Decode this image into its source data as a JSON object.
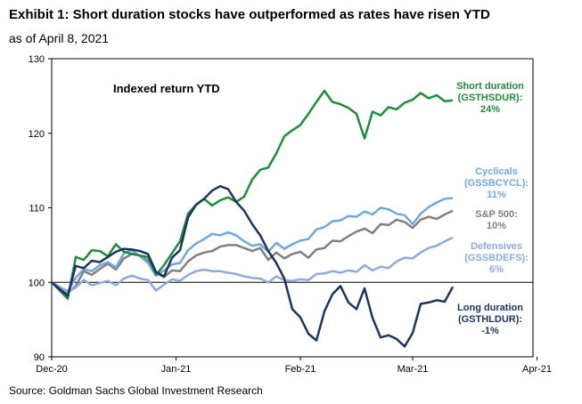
{
  "title": "Exhibit 1: Short duration stocks have outperformed as rates have risen YTD",
  "subtitle": "as of April 8, 2021",
  "source": "Source: Goldman Sachs Global Investment Research",
  "chart_data": {
    "type": "line",
    "annotation": "Indexed return YTD",
    "xlabel": "",
    "ylabel": "",
    "ylim": [
      90,
      130
    ],
    "yticks": [
      90,
      100,
      110,
      120,
      130
    ],
    "xlim": [
      0,
      120
    ],
    "xticks": [
      {
        "label": "Dec-20",
        "x": 0
      },
      {
        "label": "Jan-21",
        "x": 31
      },
      {
        "label": "Feb-21",
        "x": 62
      },
      {
        "label": "Mar-21",
        "x": 90
      },
      {
        "label": "Apr-21",
        "x": 121
      }
    ],
    "baseline": 100,
    "series": [
      {
        "name": "S&P 500",
        "legend_lines": [
          "S&P 500:",
          "10%"
        ],
        "color": "#808080",
        "x": [
          0,
          4,
          6,
          8,
          10,
          12,
          14,
          16,
          18,
          20,
          22,
          24,
          26,
          28,
          30,
          32,
          34,
          36,
          38,
          40,
          42,
          44,
          46,
          48,
          50,
          52,
          54,
          56,
          58,
          60,
          62,
          64,
          66,
          68,
          70,
          72,
          74,
          76,
          78,
          80,
          82,
          84,
          86,
          88,
          90,
          92,
          94,
          96,
          98,
          100
        ],
        "values": [
          100,
          98.6,
          99.5,
          101.5,
          101,
          101.8,
          102.5,
          101.7,
          103.2,
          103.8,
          103.6,
          102.9,
          101.2,
          100.7,
          101.6,
          101.5,
          102.8,
          103.6,
          104,
          104.2,
          104.8,
          105,
          105,
          104.6,
          104.2,
          104.6,
          103,
          104,
          103.2,
          103.8,
          104.1,
          103.3,
          104.4,
          104.6,
          105.6,
          105.5,
          106.2,
          106.8,
          107.2,
          106.6,
          107.8,
          107.7,
          108.4,
          108.1,
          107.3,
          108.4,
          108.8,
          108.5,
          109.1,
          109.6
        ]
      },
      {
        "name": "Cyclicals (GSSBCYCL)",
        "legend_lines": [
          "Cyclicals",
          "(GSSBCYCL):",
          "11%"
        ],
        "color": "#6fa8dc",
        "x": [
          0,
          4,
          6,
          8,
          10,
          12,
          14,
          16,
          18,
          20,
          22,
          24,
          26,
          28,
          30,
          32,
          34,
          36,
          38,
          40,
          42,
          44,
          46,
          48,
          50,
          52,
          54,
          56,
          58,
          60,
          62,
          64,
          66,
          68,
          70,
          72,
          74,
          76,
          78,
          80,
          82,
          84,
          86,
          88,
          90,
          92,
          94,
          96,
          98,
          100
        ],
        "values": [
          100,
          98.8,
          100.6,
          101.8,
          101.5,
          102.3,
          102.7,
          102,
          103.9,
          104.3,
          103.5,
          102.6,
          100.9,
          101.6,
          102.4,
          102.6,
          104.3,
          105.2,
          105.8,
          106.5,
          106.3,
          106.7,
          106.3,
          105.5,
          104.9,
          105.1,
          104.1,
          105.3,
          104.5,
          105.1,
          105.6,
          105.8,
          107.1,
          107.4,
          108.2,
          108.3,
          108.9,
          108.8,
          109.5,
          109.1,
          110,
          109.8,
          109.2,
          109,
          107.8,
          109.2,
          110.1,
          110.7,
          111.2,
          111.3
        ]
      },
      {
        "name": "Defensives (GSSBDEFS)",
        "legend_lines": [
          "Defensives",
          "(GSSBDEFS):",
          "6%"
        ],
        "color": "#8eaadb",
        "x": [
          0,
          4,
          6,
          8,
          10,
          12,
          14,
          16,
          18,
          20,
          22,
          24,
          26,
          28,
          30,
          32,
          34,
          36,
          38,
          40,
          42,
          44,
          46,
          48,
          50,
          52,
          54,
          56,
          58,
          60,
          62,
          64,
          66,
          68,
          70,
          72,
          74,
          76,
          78,
          80,
          82,
          84,
          86,
          88,
          90,
          92,
          94,
          96,
          98,
          100
        ],
        "values": [
          100,
          98.7,
          99.3,
          100.3,
          99.6,
          99.9,
          100.2,
          99.6,
          100.5,
          100.9,
          100.5,
          100.3,
          98.9,
          99.7,
          100.4,
          100.2,
          101,
          101.5,
          101.7,
          101.5,
          101.5,
          101.3,
          101.1,
          100.8,
          100.6,
          100.5,
          100,
          100.8,
          100.3,
          100.2,
          100.4,
          100.3,
          101.1,
          101.2,
          101.5,
          101.3,
          101.6,
          101.4,
          102.3,
          101.6,
          102.1,
          101.9,
          102.8,
          103.3,
          103.2,
          104,
          104.6,
          104.9,
          105.5,
          106
        ]
      },
      {
        "name": "Short duration (GSTHSDUR)",
        "legend_lines": [
          "Short duration",
          "(GSTHSDUR):",
          "24%"
        ],
        "color": "#1e8b3d",
        "x": [
          0,
          4,
          6,
          8,
          10,
          12,
          14,
          16,
          18,
          20,
          22,
          24,
          26,
          28,
          30,
          32,
          34,
          36,
          38,
          40,
          42,
          44,
          46,
          48,
          50,
          52,
          54,
          56,
          58,
          60,
          62,
          64,
          66,
          68,
          70,
          72,
          74,
          76,
          78,
          80,
          82,
          84,
          86,
          88,
          90,
          92,
          94,
          96,
          98,
          100
        ],
        "values": [
          100,
          97.8,
          103.4,
          103,
          104.3,
          104.2,
          103.5,
          105.1,
          104.1,
          103.8,
          103.6,
          103.4,
          101,
          102.3,
          103.9,
          105.5,
          109.2,
          110.4,
          111.2,
          110.3,
          111,
          111.4,
          110.8,
          111.5,
          113.8,
          115.1,
          115.4,
          117.3,
          119.6,
          120.4,
          121.1,
          122.6,
          124.2,
          125.7,
          124.2,
          123.9,
          123.4,
          122.6,
          119.3,
          122.9,
          122.4,
          123.5,
          123.2,
          124.1,
          124.5,
          125.4,
          124.7,
          125.1,
          124.3,
          124.4
        ]
      },
      {
        "name": "Long duration (GSTHLDUR)",
        "legend_lines": [
          "Long duration",
          "(GSTHLDUR):",
          "-1%"
        ],
        "color": "#1c3560",
        "x": [
          0,
          4,
          6,
          8,
          10,
          12,
          14,
          16,
          18,
          20,
          22,
          24,
          26,
          28,
          30,
          32,
          34,
          36,
          38,
          40,
          42,
          44,
          46,
          48,
          50,
          52,
          54,
          56,
          58,
          60,
          62,
          64,
          66,
          68,
          70,
          72,
          74,
          76,
          78,
          80,
          82,
          84,
          86,
          88,
          90,
          92,
          94,
          96,
          98,
          100
        ],
        "values": [
          100,
          98.2,
          102.2,
          101.9,
          102.9,
          102.7,
          103.4,
          104.1,
          104.5,
          104.4,
          104.2,
          103.8,
          101.4,
          100.8,
          103.3,
          104.3,
          108.7,
          110.4,
          111.2,
          112.3,
          112.9,
          112.5,
          110.8,
          109.6,
          107.8,
          106.3,
          104.2,
          102.6,
          100.5,
          96.4,
          95.3,
          93.1,
          92.2,
          96.1,
          98.4,
          99.5,
          97.3,
          96.4,
          99.2,
          95.2,
          92.6,
          92.9,
          92.4,
          91.4,
          93.2,
          97.1,
          97.3,
          97.6,
          97.4,
          99.4
        ]
      }
    ]
  }
}
